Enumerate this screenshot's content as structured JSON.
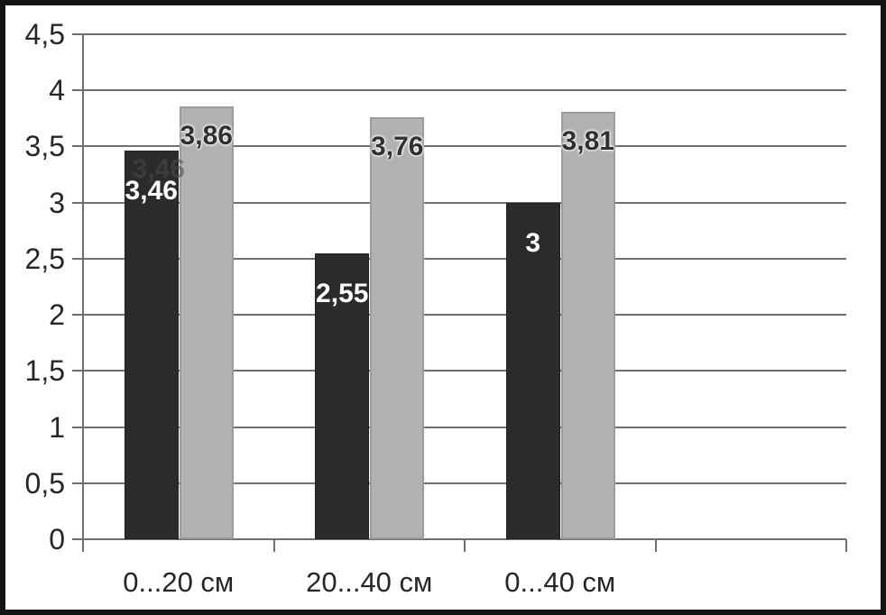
{
  "chart_data": {
    "type": "bar",
    "title": "",
    "xlabel": "",
    "ylabel": "",
    "categories": [
      "0...20 см",
      "20...40 см",
      "0...40 см",
      ""
    ],
    "x_slots": 4,
    "series": [
      {
        "name": "dark-series",
        "color": "#2b2b2d",
        "values": [
          3.46,
          2.55,
          3.0
        ],
        "labels": [
          "3,46",
          "2,55",
          "3"
        ],
        "label_color": "#ffffff",
        "label_position": "inside-end"
      },
      {
        "name": "light-series",
        "color": "#b1b1b3",
        "values": [
          3.86,
          3.76,
          3.81
        ],
        "labels": [
          "3,86",
          "3,76",
          "3,81"
        ],
        "label_color": "#303030",
        "label_position": "inside-end"
      }
    ],
    "ghost_label": {
      "series": 0,
      "index": 0,
      "text": "3,46"
    },
    "ylim": [
      0,
      4.5
    ],
    "ytick_step": 0.5,
    "ytick_labels": [
      "0",
      "0,5",
      "1",
      "1,5",
      "2",
      "2,5",
      "3",
      "3,5",
      "4",
      "4,5"
    ],
    "grid": true,
    "legend": "none",
    "decimal_separator": ","
  },
  "colors": {
    "frame_border": "#141414",
    "gridline": "#6f6f71",
    "axis_text": "#262626",
    "background": "#ffffff"
  }
}
